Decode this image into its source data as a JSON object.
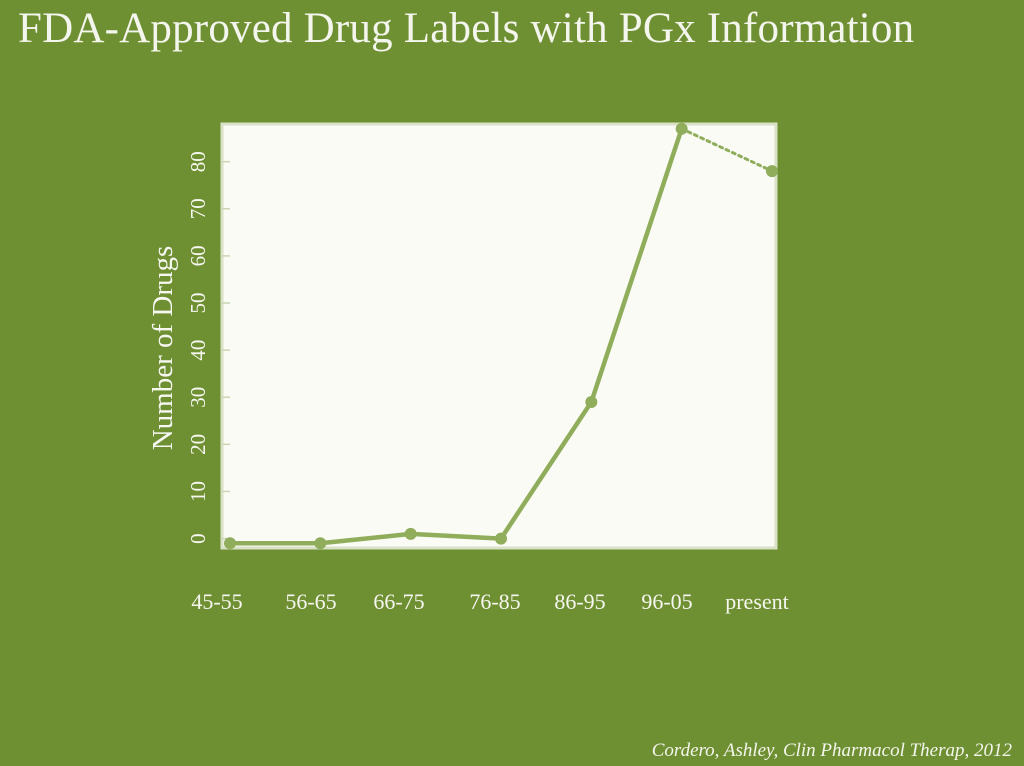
{
  "title": "FDA-Approved Drug Labels with PGx Information",
  "citation": "Cordero, Ashley, Clin Pharmacol Therap, 2012",
  "colors": {
    "background": "#6f9032",
    "plot_area": "#fbfbf6",
    "series_line": "#8fad5a",
    "text": "#f6f7f0"
  },
  "chart_data": {
    "type": "line",
    "title": "FDA-Approved Drug Labels with PGx Information",
    "xlabel": "",
    "ylabel": "Number of Drugs",
    "categories": [
      "45-55",
      "56-65",
      "66-75",
      "76-85",
      "86-95",
      "96-05",
      "present"
    ],
    "y_ticks": [
      0,
      10,
      20,
      30,
      40,
      50,
      60,
      70,
      80
    ],
    "ylim": [
      -2,
      88
    ],
    "y_tick_orientation": "rotated",
    "grid": false,
    "legend": "none",
    "series": [
      {
        "values": [
          -1,
          -1,
          1,
          0,
          29,
          87,
          78
        ],
        "segment_styles": [
          "solid",
          "solid",
          "solid",
          "solid",
          "solid",
          "dotted"
        ]
      }
    ]
  }
}
